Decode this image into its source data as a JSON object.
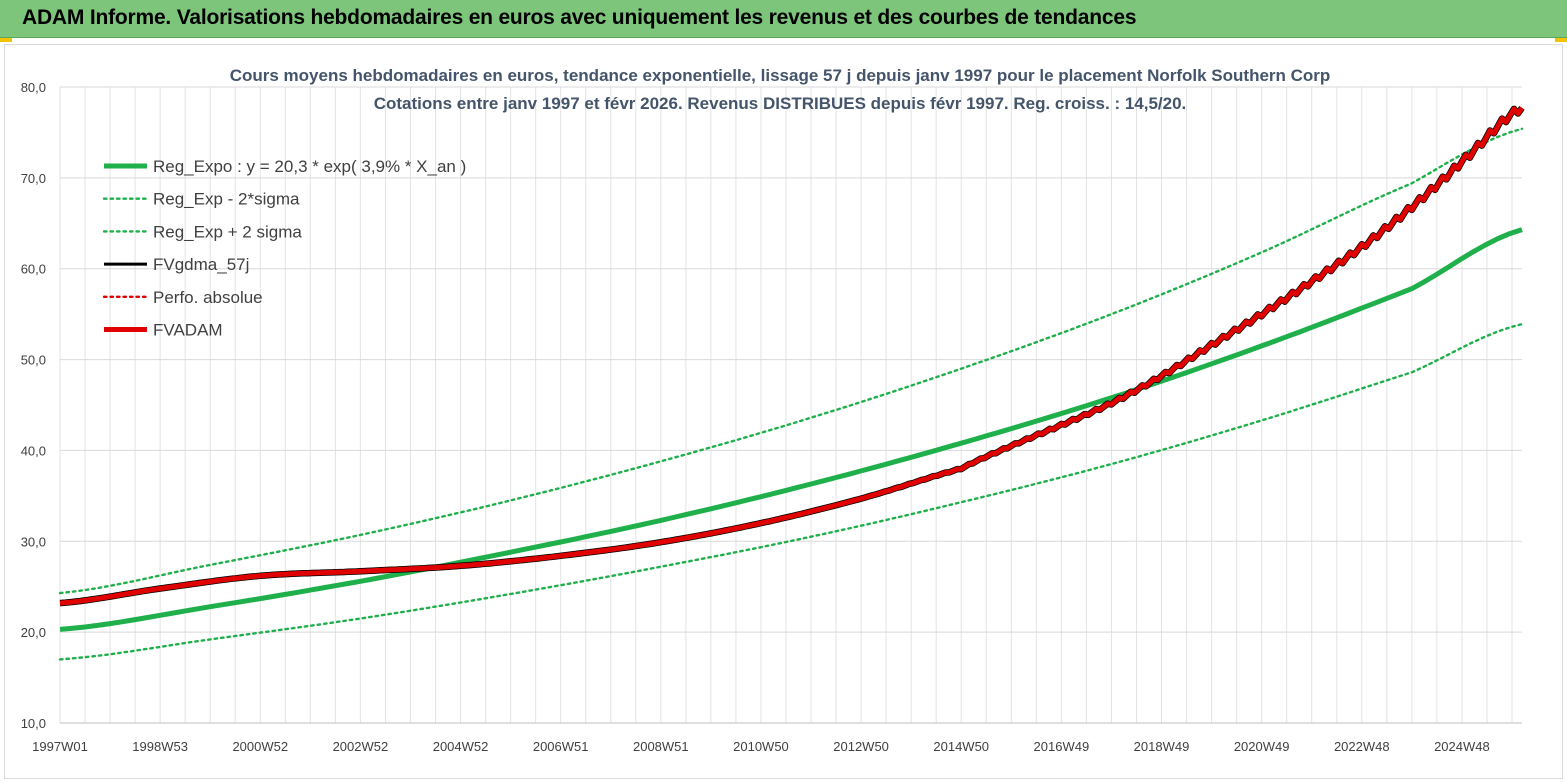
{
  "header": {
    "title": "ADAM Informe. Valorisations hebdomadaires en euros avec uniquement les revenus et des courbes de tendances"
  },
  "colors": {
    "header_bg": "#7cc57a",
    "trend_green": "#1fb04c",
    "adam_red": "#e00000",
    "grid": "#d9d9d9"
  },
  "chart_data": {
    "type": "line",
    "title": "Cours moyens hebdomadaires en euros, tendance exponentielle, lissage 57 j depuis janv 1997 pour le placement Norfolk Southern Corp",
    "subtitle": "Cotations entre janv 1997 et févr 2026. Revenus DISTRIBUES depuis févr 1997. Reg. croiss. : 14,5/20.",
    "xlabel": "",
    "ylabel": "",
    "ylim": [
      10,
      80
    ],
    "yticks": [
      "10,0",
      "20,0",
      "30,0",
      "40,0",
      "50,0",
      "60,0",
      "70,0",
      "80,0"
    ],
    "xlim": [
      1997.0,
      2026.2
    ],
    "xtick_labels": [
      "1997W01",
      "1998W53",
      "2000W52",
      "2002W52",
      "2004W52",
      "2006W51",
      "2008W51",
      "2010W50",
      "2012W50",
      "2014W50",
      "2016W49",
      "2018W49",
      "2020W49",
      "2022W48",
      "2024W48"
    ],
    "xtick_years": [
      1997.0,
      1999.0,
      2001.0,
      2003.0,
      2005.0,
      2007.0,
      2009.0,
      2011.0,
      2013.0,
      2015.0,
      2017.0,
      2019.0,
      2021.0,
      2023.0,
      2025.0
    ],
    "grid": true,
    "legend_position": "top-left",
    "series": [
      {
        "name": "Reg_Expo : y = 20,3 * exp( 3,9% *  X_an )",
        "style": "solid-thick",
        "color": "#1fb04c",
        "x": [
          1997.0,
          2000.0,
          2003.0,
          2006.0,
          2009.0,
          2012.0,
          2015.0,
          2018.0,
          2021.0,
          2024.0,
          2026.2
        ],
        "y": [
          20.3,
          22.8,
          25.6,
          28.8,
          32.3,
          36.3,
          40.8,
          45.8,
          51.5,
          57.8,
          64.3
        ]
      },
      {
        "name": "Reg_Exp - 2*sigma",
        "style": "dotted",
        "color": "#1fb04c",
        "x": [
          1997.0,
          2000.0,
          2003.0,
          2006.0,
          2009.0,
          2012.0,
          2015.0,
          2018.0,
          2021.0,
          2024.0,
          2026.2
        ],
        "y": [
          17.0,
          19.2,
          21.5,
          24.2,
          27.2,
          30.5,
          34.3,
          38.5,
          43.3,
          48.6,
          53.9
        ]
      },
      {
        "name": "Reg_Exp + 2 sigma",
        "style": "dotted",
        "color": "#1fb04c",
        "x": [
          1997.0,
          2000.0,
          2003.0,
          2006.0,
          2009.0,
          2012.0,
          2015.0,
          2018.0,
          2021.0,
          2024.0,
          2026.2
        ],
        "y": [
          24.3,
          27.4,
          30.7,
          34.5,
          38.8,
          43.6,
          49.0,
          55.0,
          61.8,
          69.4,
          75.4
        ]
      },
      {
        "name": "FVgdma_57j",
        "style": "solid",
        "color": "#000000",
        "x": [
          1997.0,
          1999.0,
          2001.0,
          2003.0,
          2005.0,
          2007.0,
          2009.0,
          2011.0,
          2013.0,
          2015.0,
          2016.0,
          2017.0,
          2018.0,
          2019.0,
          2020.0,
          2021.0,
          2022.0,
          2023.0,
          2024.0,
          2025.0,
          2026.2
        ],
        "y": [
          23.2,
          24.8,
          26.2,
          26.7,
          27.3,
          28.4,
          29.9,
          32.0,
          34.7,
          38.0,
          40.5,
          42.8,
          45.2,
          48.2,
          51.6,
          55.0,
          58.6,
          62.4,
          66.8,
          71.8,
          77.7
        ]
      },
      {
        "name": "Perfo. absolue",
        "style": "dotted",
        "color": "#e00000",
        "x": [],
        "y": []
      },
      {
        "name": "FVADAM",
        "style": "solid-thick",
        "color": "#e00000",
        "x": [
          1997.0,
          1999.0,
          2001.0,
          2003.0,
          2005.0,
          2007.0,
          2009.0,
          2011.0,
          2013.0,
          2015.0,
          2016.0,
          2017.0,
          2018.0,
          2019.0,
          2020.0,
          2021.0,
          2022.0,
          2023.0,
          2024.0,
          2025.0,
          2026.2
        ],
        "y": [
          23.2,
          24.8,
          26.2,
          26.7,
          27.3,
          28.4,
          29.9,
          32.0,
          34.7,
          38.0,
          40.5,
          42.8,
          45.2,
          48.2,
          51.6,
          55.0,
          58.6,
          62.4,
          66.8,
          71.8,
          77.7
        ]
      }
    ]
  }
}
